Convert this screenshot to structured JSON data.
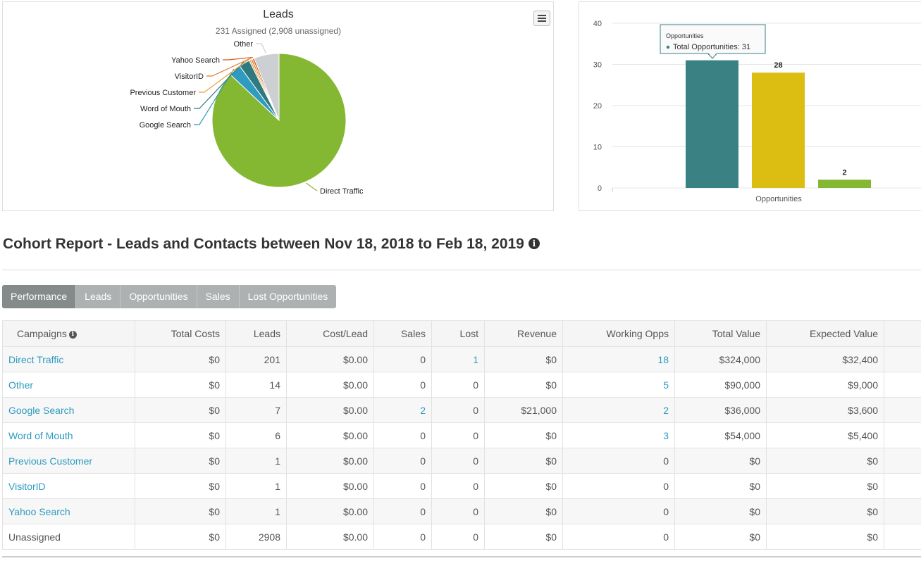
{
  "pie_chart": {
    "title": "Leads",
    "subtitle": "231 Assigned (2,908 unassigned)"
  },
  "bar_chart": {
    "tooltip_title": "Opportunities",
    "tooltip_value": "Total Opportunities: 31",
    "xlabel": "Opportunities"
  },
  "chart_data": [
    {
      "type": "pie",
      "title": "Leads",
      "subtitle": "231 Assigned (2,908 unassigned)",
      "labels": [
        "Direct Traffic",
        "Google Search",
        "Word of Mouth",
        "Previous Customer",
        "VisitorID",
        "Yahoo Search",
        "Other"
      ],
      "values": [
        201,
        7,
        6,
        1,
        1,
        1,
        14
      ],
      "colors": [
        "#85b832",
        "#2e9bbf",
        "#2f7a80",
        "#e8a23a",
        "#e07b2a",
        "#d9581e",
        "#cdd0d3"
      ]
    },
    {
      "type": "bar",
      "categories": [
        "Opportunities"
      ],
      "series": [
        {
          "values": [
            31
          ],
          "color": "#3a8184"
        },
        {
          "values": [
            28
          ],
          "color": "#dcbd12"
        },
        {
          "values": [
            2
          ],
          "color": "#85b832"
        }
      ],
      "ylim": [
        0,
        40
      ],
      "yticks": [
        0,
        10,
        20,
        30,
        40
      ],
      "grid": true
    }
  ],
  "report": {
    "title": "Cohort Report - Leads and Contacts between Nov 18, 2018 to Feb 18, 2019",
    "info_glyph": "i"
  },
  "tabs": [
    "Performance",
    "Leads",
    "Opportunities",
    "Sales",
    "Lost Opportunities"
  ],
  "active_tab": "Performance",
  "table": {
    "columns": [
      "Campaigns",
      "Total Costs",
      "Leads",
      "Cost/Lead",
      "Sales",
      "Lost",
      "Revenue",
      "Working Opps",
      "Total Value",
      "Expected Value"
    ],
    "rows": [
      {
        "name": "Direct Traffic",
        "cells": [
          "$0",
          "201",
          "$0.00",
          "0",
          "1",
          "$0",
          "18",
          "$324,000",
          "$32,400"
        ]
      },
      {
        "name": "Other",
        "cells": [
          "$0",
          "14",
          "$0.00",
          "0",
          "0",
          "$0",
          "5",
          "$90,000",
          "$9,000"
        ]
      },
      {
        "name": "Google Search",
        "cells": [
          "$0",
          "7",
          "$0.00",
          "2",
          "0",
          "$21,000",
          "2",
          "$36,000",
          "$3,600"
        ]
      },
      {
        "name": "Word of Mouth",
        "cells": [
          "$0",
          "6",
          "$0.00",
          "0",
          "0",
          "$0",
          "3",
          "$54,000",
          "$5,400"
        ]
      },
      {
        "name": "Previous Customer",
        "cells": [
          "$0",
          "1",
          "$0.00",
          "0",
          "0",
          "$0",
          "0",
          "$0",
          "$0"
        ]
      },
      {
        "name": "VisitorID",
        "cells": [
          "$0",
          "1",
          "$0.00",
          "0",
          "0",
          "$0",
          "0",
          "$0",
          "$0"
        ]
      },
      {
        "name": "Yahoo Search",
        "cells": [
          "$0",
          "1",
          "$0.00",
          "0",
          "0",
          "$0",
          "0",
          "$0",
          "$0"
        ]
      },
      {
        "name": "Unassigned",
        "cells": [
          "$0",
          "2908",
          "$0.00",
          "0",
          "0",
          "$0",
          "0",
          "$0",
          "$0"
        ]
      }
    ]
  }
}
